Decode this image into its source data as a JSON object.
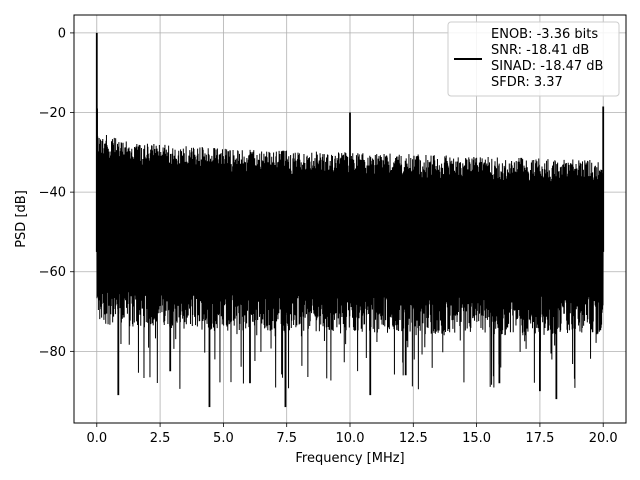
{
  "chart_data": {
    "type": "line",
    "title": "",
    "xlabel": "Frequency [MHz]",
    "ylabel": "PSD [dB]",
    "xlim": [
      -0.9,
      20.9
    ],
    "ylim": [
      -98,
      4.5
    ],
    "xticks": [
      0.0,
      2.5,
      5.0,
      7.5,
      10.0,
      12.5,
      15.0,
      17.5,
      20.0
    ],
    "xtick_labels": [
      "0.0",
      "2.5",
      "5.0",
      "7.5",
      "10.0",
      "12.5",
      "15.0",
      "17.5",
      "20.0"
    ],
    "yticks": [
      0,
      -20,
      -40,
      -60,
      -80
    ],
    "ytick_labels": [
      "0",
      "−20",
      "−40",
      "−60",
      "−80"
    ],
    "grid": true,
    "legend_position": "top-right",
    "legend_entries": [
      "ENOB: -3.36 bits\nSNR: -18.41 dB\nSINAD: -18.47 dB\nSFDR: 3.37"
    ],
    "series_color": "#000000",
    "noise_band": {
      "x": [
        0.1,
        1,
        2.5,
        5,
        7.5,
        10,
        12.5,
        15,
        17.5,
        20
      ],
      "upper": [
        -25,
        -27,
        -28,
        -29,
        -29.5,
        -30,
        -30.5,
        -31,
        -31.5,
        -32
      ],
      "lower": [
        -70,
        -71,
        -71,
        -72,
        -72,
        -72,
        -73,
        -73,
        -73,
        -73
      ],
      "deep_min": -94
    },
    "spikes": [
      {
        "x": 0.0,
        "y": 0.0
      },
      {
        "x": 0.01,
        "y": -19
      },
      {
        "x": 10.0,
        "y": -20
      },
      {
        "x": 20.0,
        "y": -18.5
      }
    ],
    "deep_dips": [
      {
        "x": 0.85,
        "y": -91
      },
      {
        "x": 2.9,
        "y": -85
      },
      {
        "x": 4.45,
        "y": -94
      },
      {
        "x": 6.05,
        "y": -88
      },
      {
        "x": 7.45,
        "y": -94
      },
      {
        "x": 10.8,
        "y": -91
      },
      {
        "x": 12.2,
        "y": -86
      },
      {
        "x": 15.9,
        "y": -88
      },
      {
        "x": 17.5,
        "y": -90
      },
      {
        "x": 18.15,
        "y": -92
      }
    ]
  }
}
